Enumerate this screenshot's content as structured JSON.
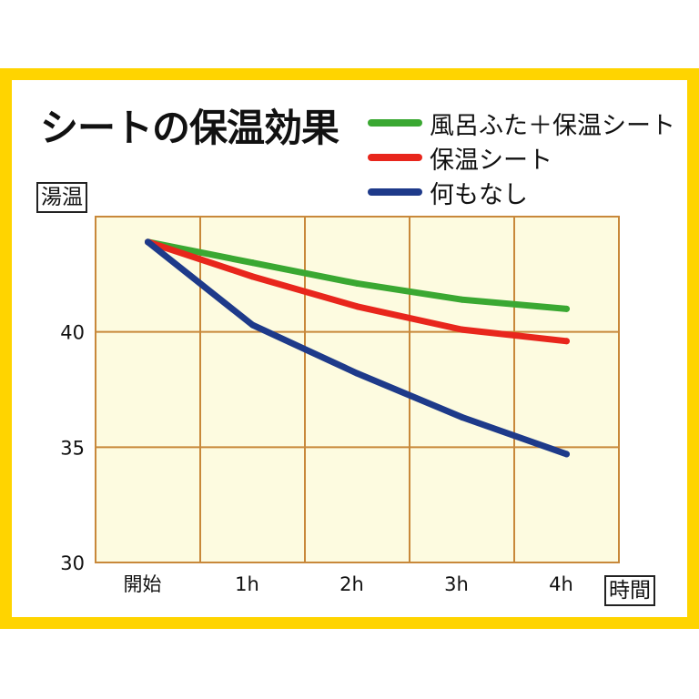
{
  "chart_data": {
    "type": "line",
    "title": "シートの保温効果",
    "ylabel": "湯温",
    "xlabel": "時間",
    "categories": [
      "開始",
      "1h",
      "2h",
      "3h",
      "4h"
    ],
    "y_ticks": [
      30,
      35,
      40
    ],
    "ylim": [
      30,
      45
    ],
    "grid": true,
    "legend_position": "top-right",
    "plot_background": "#fdfbe0",
    "grid_color": "#c8883a",
    "series": [
      {
        "name": "風呂ふた＋保温シート",
        "color": "#3aa832",
        "values": [
          43.9,
          43.0,
          42.1,
          41.4,
          41.0
        ]
      },
      {
        "name": "保温シート",
        "color": "#e8261c",
        "values": [
          43.9,
          42.4,
          41.1,
          40.1,
          39.6
        ]
      },
      {
        "name": "何もなし",
        "color": "#1e3a8a",
        "values": [
          43.9,
          40.3,
          38.2,
          36.3,
          34.7
        ]
      }
    ]
  }
}
